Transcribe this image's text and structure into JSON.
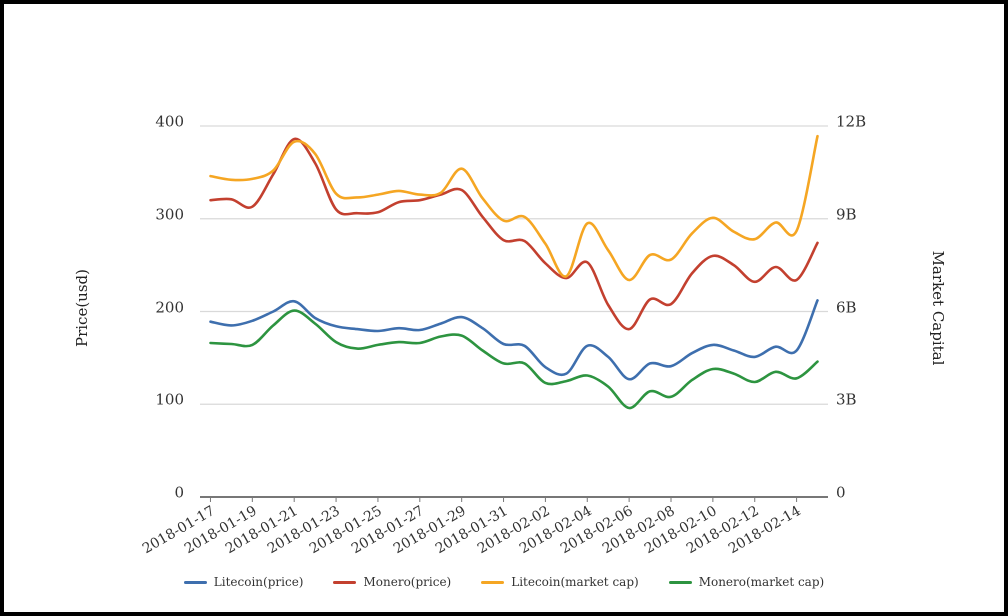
{
  "page": {
    "background": "#ffffff",
    "frame_color": "#000000",
    "grid_color": "#d9d9d9",
    "axis_line_color": "#4a4a4a",
    "tick_text_color": "#333333"
  },
  "chart_data": {
    "type": "line",
    "smooth": true,
    "grid": "horizontal-only",
    "legend_position": "bottom",
    "x": [
      "2018-01-17",
      "2018-01-18",
      "2018-01-19",
      "2018-01-20",
      "2018-01-21",
      "2018-01-22",
      "2018-01-23",
      "2018-01-24",
      "2018-01-25",
      "2018-01-26",
      "2018-01-27",
      "2018-01-28",
      "2018-01-29",
      "2018-01-30",
      "2018-01-31",
      "2018-02-01",
      "2018-02-02",
      "2018-02-03",
      "2018-02-04",
      "2018-02-05",
      "2018-02-06",
      "2018-02-07",
      "2018-02-08",
      "2018-02-09",
      "2018-02-10",
      "2018-02-11",
      "2018-02-12",
      "2018-02-13",
      "2018-02-14",
      "2018-02-15"
    ],
    "x_tick_labels": [
      "2018-01-17",
      "2018-01-19",
      "2018-01-21",
      "2018-01-23",
      "2018-01-25",
      "2018-01-27",
      "2018-01-29",
      "2018-01-31",
      "2018-02-02",
      "2018-02-04",
      "2018-02-06",
      "2018-02-08",
      "2018-02-10",
      "2018-02-12",
      "2018-02-14"
    ],
    "left_axis": {
      "title": "Price(usd)",
      "tick_labels": [
        "0",
        "100",
        "200",
        "300",
        "400"
      ],
      "range": [
        0,
        400
      ]
    },
    "right_axis": {
      "title": "Market Capital",
      "tick_labels": [
        "0",
        "3B",
        "6B",
        "9B",
        "12B"
      ],
      "range_billions": [
        0,
        12
      ]
    },
    "series": [
      {
        "name": "Litecoin(price)",
        "axis": "left",
        "color": "#3e6fae",
        "values": [
          189,
          185,
          190,
          200,
          211,
          193,
          184,
          181,
          179,
          182,
          180,
          187,
          194,
          182,
          165,
          163,
          140,
          133,
          163,
          151,
          127,
          144,
          141,
          155,
          164,
          158,
          151,
          162,
          158,
          212
        ]
      },
      {
        "name": "Monero(price)",
        "axis": "left",
        "color": "#c3402f",
        "values": [
          320,
          321,
          313,
          348,
          386,
          360,
          310,
          306,
          307,
          318,
          320,
          326,
          331,
          302,
          277,
          276,
          252,
          236,
          253,
          207,
          181,
          213,
          208,
          241,
          260,
          250,
          232,
          248,
          234,
          274
        ]
      },
      {
        "name": "Litecoin(market cap)",
        "axis": "right",
        "color": "#f5a623",
        "values": [
          10.38,
          10.26,
          10.29,
          10.56,
          11.49,
          11.1,
          9.81,
          9.69,
          9.78,
          9.9,
          9.78,
          9.84,
          10.62,
          9.66,
          8.94,
          9.06,
          8.19,
          7.14,
          8.85,
          7.98,
          7.02,
          7.83,
          7.68,
          8.52,
          9.03,
          8.58,
          8.34,
          8.88,
          8.61,
          11.67
        ]
      },
      {
        "name": "Monero(market cap)",
        "axis": "right",
        "color": "#2d9440",
        "values": [
          4.98,
          4.95,
          4.92,
          5.55,
          6.03,
          5.61,
          5.01,
          4.8,
          4.92,
          5.01,
          4.98,
          5.19,
          5.22,
          4.74,
          4.32,
          4.32,
          3.69,
          3.75,
          3.93,
          3.57,
          2.88,
          3.42,
          3.24,
          3.78,
          4.14,
          3.99,
          3.72,
          4.05,
          3.84,
          4.38
        ]
      }
    ]
  }
}
